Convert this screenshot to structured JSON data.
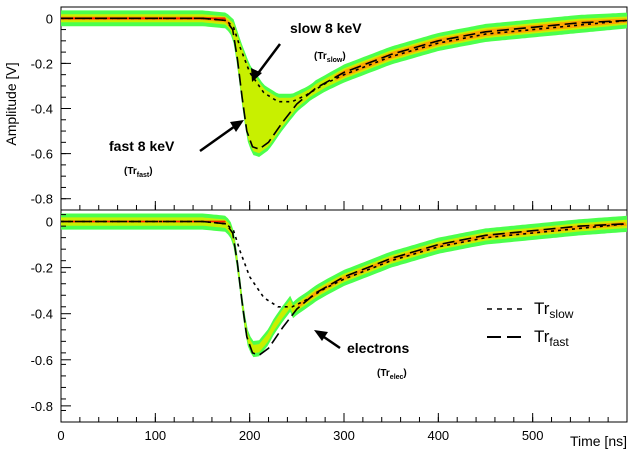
{
  "chart_data": [
    {
      "type": "line",
      "panel": "top",
      "ylabel": "Amplitude [V]",
      "xlabel": "",
      "xlim": [
        0,
        600
      ],
      "ylim": [
        -0.85,
        0.05
      ],
      "x_ticks": [
        0,
        100,
        200,
        300,
        400,
        500
      ],
      "y_ticks": [
        0,
        -0.2,
        -0.4,
        -0.6,
        -0.8
      ],
      "y_tick_labels": [
        "0",
        "-0.2",
        "-0.4",
        "-0.6",
        "-0.8"
      ],
      "series": [
        {
          "style": "dashed",
          "x": [
            0,
            150,
            175,
            183,
            190,
            200,
            215,
            230,
            245,
            260,
            280,
            300,
            350,
            400,
            450,
            500,
            550,
            600
          ],
          "y": [
            0.0,
            0.0,
            -0.01,
            -0.04,
            -0.13,
            -0.24,
            -0.33,
            -0.37,
            -0.37,
            -0.34,
            -0.29,
            -0.25,
            -0.17,
            -0.11,
            -0.07,
            -0.05,
            -0.03,
            -0.01
          ]
        },
        {
          "style": "long-dashed",
          "x": [
            0,
            150,
            175,
            182,
            187,
            192,
            197,
            203,
            210,
            220,
            235,
            250,
            270,
            300,
            350,
            400,
            450,
            500,
            550,
            600
          ],
          "y": [
            0.0,
            0.0,
            -0.01,
            -0.05,
            -0.18,
            -0.35,
            -0.5,
            -0.57,
            -0.58,
            -0.55,
            -0.46,
            -0.38,
            -0.31,
            -0.24,
            -0.16,
            -0.1,
            -0.06,
            -0.04,
            -0.02,
            -0.01
          ]
        }
      ],
      "annotations": [
        {
          "text": "slow 8 keV",
          "sub": "Tr",
          "subsub": "slow"
        },
        {
          "text": "fast 8 keV",
          "sub": "Tr",
          "subsub": "fast"
        }
      ]
    },
    {
      "type": "line",
      "panel": "bottom",
      "xlabel": "Time [ns]",
      "ylabel": "",
      "xlim": [
        0,
        600
      ],
      "ylim": [
        -0.87,
        0.05
      ],
      "x_ticks": [
        0,
        100,
        200,
        300,
        400,
        500
      ],
      "x_tick_labels": [
        "0",
        "100",
        "200",
        "300",
        "400",
        "500"
      ],
      "y_ticks": [
        0,
        -0.2,
        -0.4,
        -0.6,
        -0.8
      ],
      "y_tick_labels": [
        "0",
        "-0.2",
        "-0.4",
        "-0.6",
        "-0.8"
      ],
      "series": [
        {
          "name": "Tr",
          "name_sub": "slow",
          "style": "dashed",
          "x": [
            0,
            150,
            175,
            183,
            190,
            200,
            215,
            230,
            245,
            260,
            280,
            300,
            350,
            400,
            450,
            500,
            550,
            600
          ],
          "y": [
            0.0,
            0.0,
            -0.01,
            -0.04,
            -0.13,
            -0.24,
            -0.33,
            -0.37,
            -0.37,
            -0.34,
            -0.29,
            -0.25,
            -0.17,
            -0.11,
            -0.07,
            -0.05,
            -0.03,
            -0.01
          ]
        },
        {
          "name": "Tr",
          "name_sub": "fast",
          "style": "long-dashed",
          "x": [
            0,
            150,
            175,
            182,
            187,
            192,
            197,
            203,
            210,
            220,
            235,
            250,
            270,
            300,
            350,
            400,
            450,
            500,
            550,
            600
          ],
          "y": [
            0.0,
            0.0,
            -0.01,
            -0.05,
            -0.18,
            -0.35,
            -0.5,
            -0.57,
            -0.58,
            -0.55,
            -0.46,
            -0.38,
            -0.31,
            -0.24,
            -0.16,
            -0.1,
            -0.06,
            -0.04,
            -0.02,
            -0.01
          ]
        }
      ],
      "annotations": [
        {
          "text": "electrons",
          "sub": "Tr",
          "subsub": "elec"
        }
      ],
      "legend": "right"
    }
  ],
  "colors": {
    "band_outer": "#4cff4c",
    "band_mid": "#c8f000",
    "band_core": "#ffa500",
    "band_center": "#ff2000",
    "model_line": "#000000"
  }
}
